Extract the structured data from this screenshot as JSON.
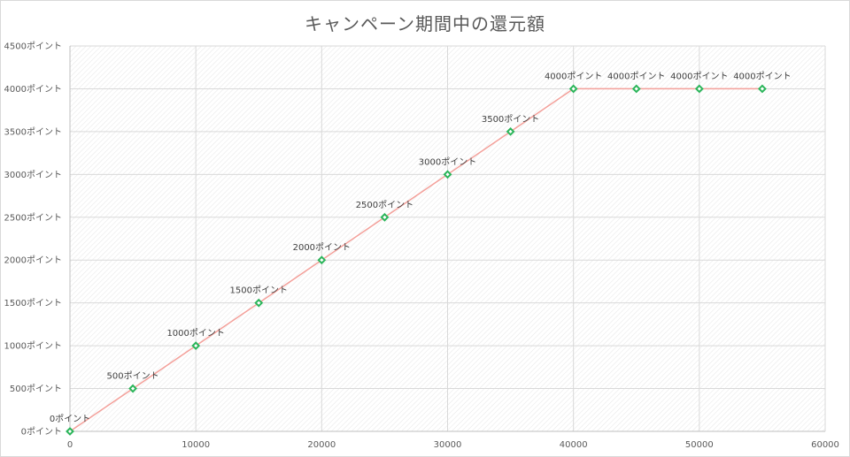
{
  "chart_data": {
    "type": "line",
    "title": "キャンペーン期間中の還元額",
    "xlabel": "",
    "ylabel": "",
    "xlim": [
      0,
      60000
    ],
    "ylim": [
      0,
      4500
    ],
    "x_ticks": [
      "0",
      "10000",
      "20000",
      "30000",
      "40000",
      "50000",
      "60000"
    ],
    "y_ticks": [
      "0ポイント",
      "500ポイント",
      "1000ポイント",
      "1500ポイント",
      "2000ポイント",
      "2500ポイント",
      "3000ポイント",
      "3500ポイント",
      "4000ポイント",
      "4500ポイント"
    ],
    "grid": true,
    "series": [
      {
        "x": [
          0,
          5000,
          10000,
          15000,
          20000,
          25000,
          30000,
          35000,
          40000,
          45000,
          50000,
          55000
        ],
        "values": [
          0,
          500,
          1000,
          1500,
          2000,
          2500,
          3000,
          3500,
          4000,
          4000,
          4000,
          4000
        ],
        "labels": [
          "0ポイント",
          "500ポイント",
          "1000ポイント",
          "1500ポイント",
          "2000ポイント",
          "2500ポイント",
          "3000ポイント",
          "3500ポイント",
          "4000ポイント",
          "4000ポイント",
          "4000ポイント",
          "4000ポイント"
        ]
      }
    ],
    "colors": {
      "line": "#f4a09a",
      "marker_stroke": "#2bb55a",
      "marker_fill": "#ffffff",
      "grid": "#d9d9d9",
      "hatch": "#e6e6e6"
    }
  }
}
